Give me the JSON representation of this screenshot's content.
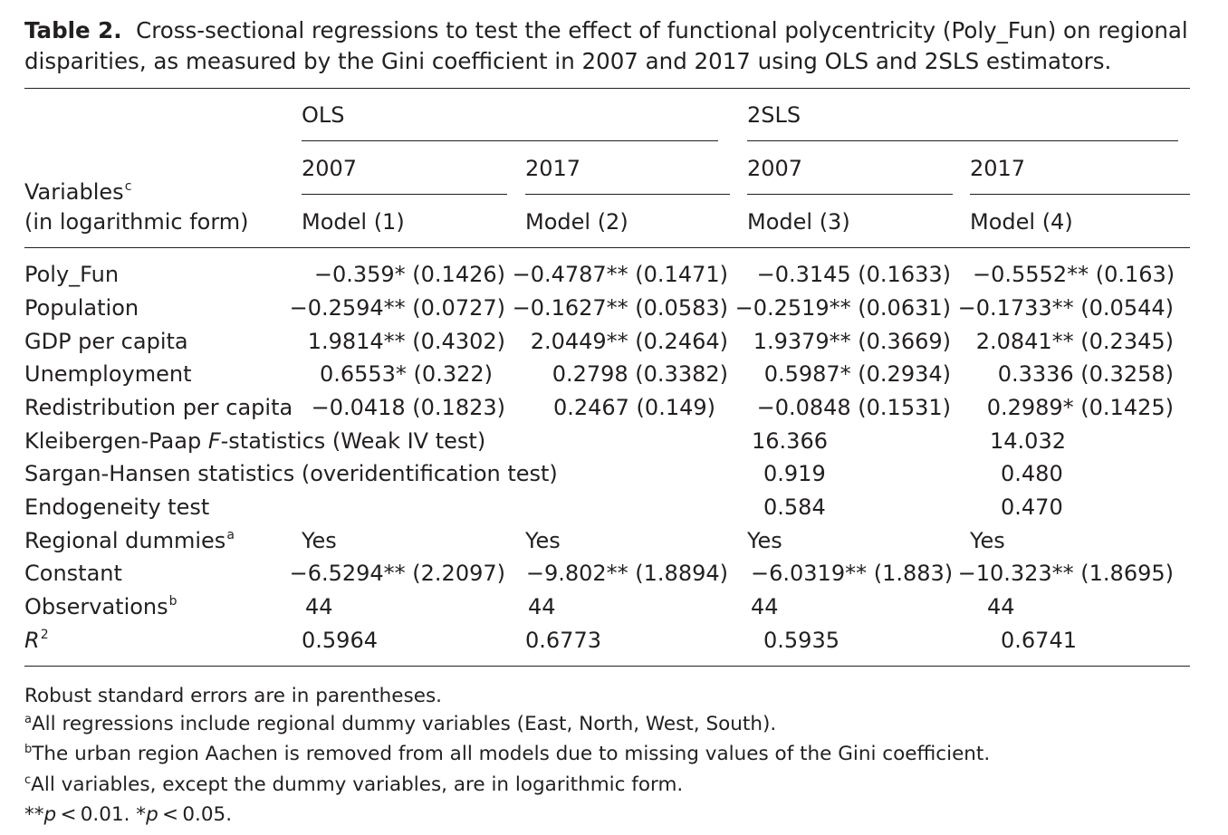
{
  "caption": {
    "label": "Table 2.",
    "text": "Cross-sectional regressions to test the effect of functional polycentricity (Poly_Fun) on regional disparities, as measured by the Gini coefficient in 2007 and 2017 using OLS and 2SLS estimators."
  },
  "header": {
    "groups": [
      "OLS",
      "2SLS"
    ],
    "years": [
      "2007",
      "2017",
      "2007",
      "2017"
    ],
    "models": [
      "Model (1)",
      "Model (2)",
      "Model (3)",
      "Model (4)"
    ],
    "var_label_1": "Variables",
    "var_label_1_sup": "c",
    "var_label_2": "(in logarithmic form)"
  },
  "rows": {
    "poly_fun": {
      "label": "Poly_Fun",
      "cells": [
        "−0.359* (0.1426)",
        "−0.4787** (0.1471)",
        "−0.3145 (0.1633)",
        "−0.5552** (0.163)"
      ]
    },
    "population": {
      "label": "Population",
      "cells": [
        "−0.2594** (0.0727)",
        "−0.1627** (0.0583)",
        "−0.2519** (0.0631)",
        "−0.1733** (0.0544)"
      ]
    },
    "gdp": {
      "label": "GDP per capita",
      "cells": [
        "1.9814** (0.4302)",
        "2.0449** (0.2464)",
        "1.9379** (0.3669)",
        "2.0841** (0.2345)"
      ]
    },
    "unemployment": {
      "label": "Unemployment",
      "cells": [
        "0.6553* (0.322)",
        "0.2798 (0.3382)",
        "0.5987* (0.2934)",
        "0.3336 (0.3258)"
      ]
    },
    "redistribution": {
      "label": "Redistribution per capita",
      "cells": [
        "−0.0418 (0.1823)",
        "0.2467 (0.149)",
        "−0.0848 (0.1531)",
        "0.2989* (0.1425)"
      ]
    },
    "kp": {
      "label_pre": "Kleibergen-Paap ",
      "label_italic": "F",
      "label_post": "-statistics (Weak IV test)",
      "cells": [
        "16.366",
        "14.032"
      ]
    },
    "sargan": {
      "label": "Sargan-Hansen statistics (overidentification test)",
      "cells": [
        "0.919",
        "0.480"
      ]
    },
    "endog": {
      "label": "Endogeneity test",
      "cells": [
        "0.584",
        "0.470"
      ]
    },
    "dummies": {
      "label": "Regional dummies",
      "label_sup": "a",
      "cells": [
        "Yes",
        "Yes",
        "Yes",
        "Yes"
      ]
    },
    "constant": {
      "label": "Constant",
      "cells": [
        "−6.5294** (2.2097)",
        "−9.802** (1.8894)",
        "−6.0319** (1.883)",
        "−10.323** (1.8695)"
      ]
    },
    "observations": {
      "label": "Observations",
      "label_sup": "b",
      "cells": [
        "44",
        "44",
        "44",
        "44"
      ]
    },
    "r2": {
      "label": "R",
      "label_sup": "2",
      "cells": [
        "0.5964",
        "0.6773",
        "0.5935",
        "0.6741"
      ]
    }
  },
  "notes": {
    "robust": "Robust standard errors are in parentheses.",
    "a_sup": "a",
    "a": "All regressions include regional dummy variables (East, North, West, South).",
    "b_sup": "b",
    "b": "The urban region Aachen is removed from all models due to missing values of the Gini coefficient.",
    "c_sup": "c",
    "c": "All variables, except the dummy variables, are in logarithmic form.",
    "sig_1a": "**",
    "sig_p": "p",
    "sig_1b": " < 0.01. *",
    "sig_2b": " < 0.05."
  }
}
